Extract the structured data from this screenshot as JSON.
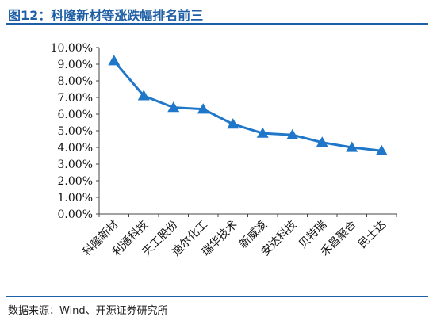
{
  "figure": {
    "title": "图12：科隆新材等涨跌幅排名前三",
    "source": "数据来源：Wind、开源证券研究所"
  },
  "colors": {
    "accent": "#1f5fa6",
    "series": "#1f77c9",
    "axis": "#444444"
  },
  "chart_data": {
    "type": "line",
    "categories": [
      "科隆新材",
      "利通科技",
      "天工股份",
      "迪尔化工",
      "瑞华技术",
      "新威凌",
      "安达科技",
      "贝特瑞",
      "禾昌聚合",
      "民士达"
    ],
    "series": [
      {
        "values": [
          9.2,
          7.1,
          6.4,
          6.3,
          5.4,
          4.85,
          4.75,
          4.3,
          4.0,
          3.8
        ],
        "marker": "triangle"
      }
    ],
    "ylim": [
      0,
      10
    ],
    "ytick_labels": [
      "0.00%",
      "1.00%",
      "2.00%",
      "3.00%",
      "4.00%",
      "5.00%",
      "6.00%",
      "7.00%",
      "8.00%",
      "9.00%",
      "10.00%"
    ],
    "grid": false,
    "legend": "none"
  }
}
